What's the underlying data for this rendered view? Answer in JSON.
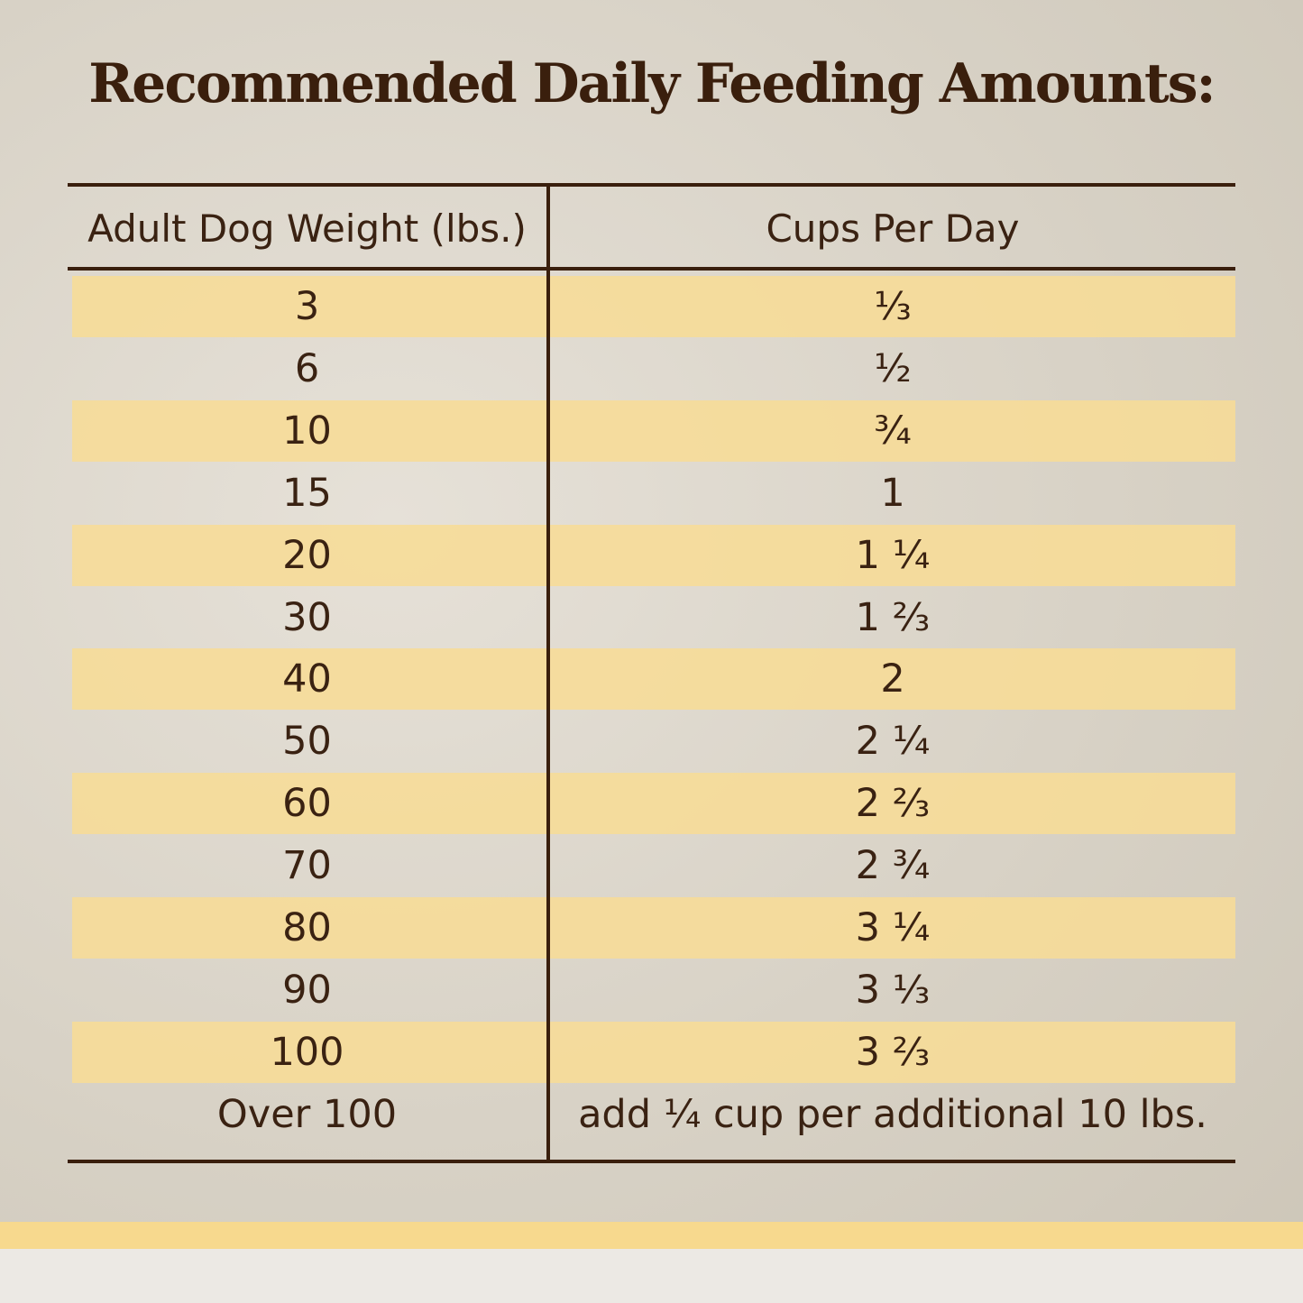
{
  "title": "Recommended Daily Feeding Amounts:",
  "table": {
    "headers": [
      "Adult Dog Weight (lbs.)",
      "Cups Per Day"
    ],
    "rows": [
      [
        "3",
        "⅓"
      ],
      [
        "6",
        "½"
      ],
      [
        "10",
        "¾"
      ],
      [
        "15",
        "1"
      ],
      [
        "20",
        "1 ¼"
      ],
      [
        "30",
        "1 ⅔"
      ],
      [
        "40",
        "2"
      ],
      [
        "50",
        "2 ¼"
      ],
      [
        "60",
        "2 ⅔"
      ],
      [
        "70",
        "2 ¾"
      ],
      [
        "80",
        "3 ¼"
      ],
      [
        "90",
        "3 ⅓"
      ],
      [
        "100",
        "3 ⅔"
      ],
      [
        "Over 100",
        "add ¼ cup per additional 10 lbs."
      ]
    ]
  }
}
